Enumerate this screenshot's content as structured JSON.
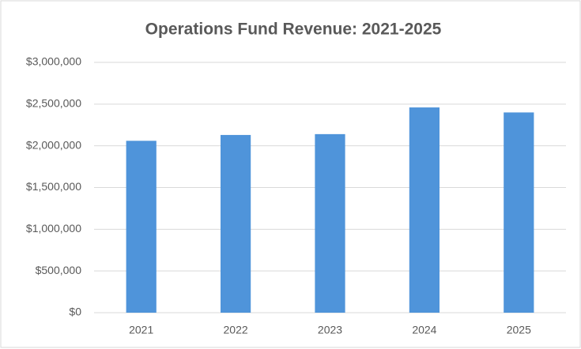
{
  "chart_data": {
    "type": "bar",
    "title": "Operations Fund Revenue: 2021-2025",
    "categories": [
      "2021",
      "2022",
      "2023",
      "2024",
      "2025"
    ],
    "values": [
      2060000,
      2130000,
      2140000,
      2460000,
      2400000
    ],
    "color": "#4f94da",
    "ylim": [
      0,
      3000000
    ],
    "yticks": [
      {
        "value": 0,
        "label": "$0"
      },
      {
        "value": 500000,
        "label": "$500,000"
      },
      {
        "value": 1000000,
        "label": "$1,000,000"
      },
      {
        "value": 1500000,
        "label": "$1,500,000"
      },
      {
        "value": 2000000,
        "label": "$2,000,000"
      },
      {
        "value": 2500000,
        "label": "$2,500,000"
      },
      {
        "value": 3000000,
        "label": "$3,000,000"
      }
    ],
    "grid": true
  }
}
